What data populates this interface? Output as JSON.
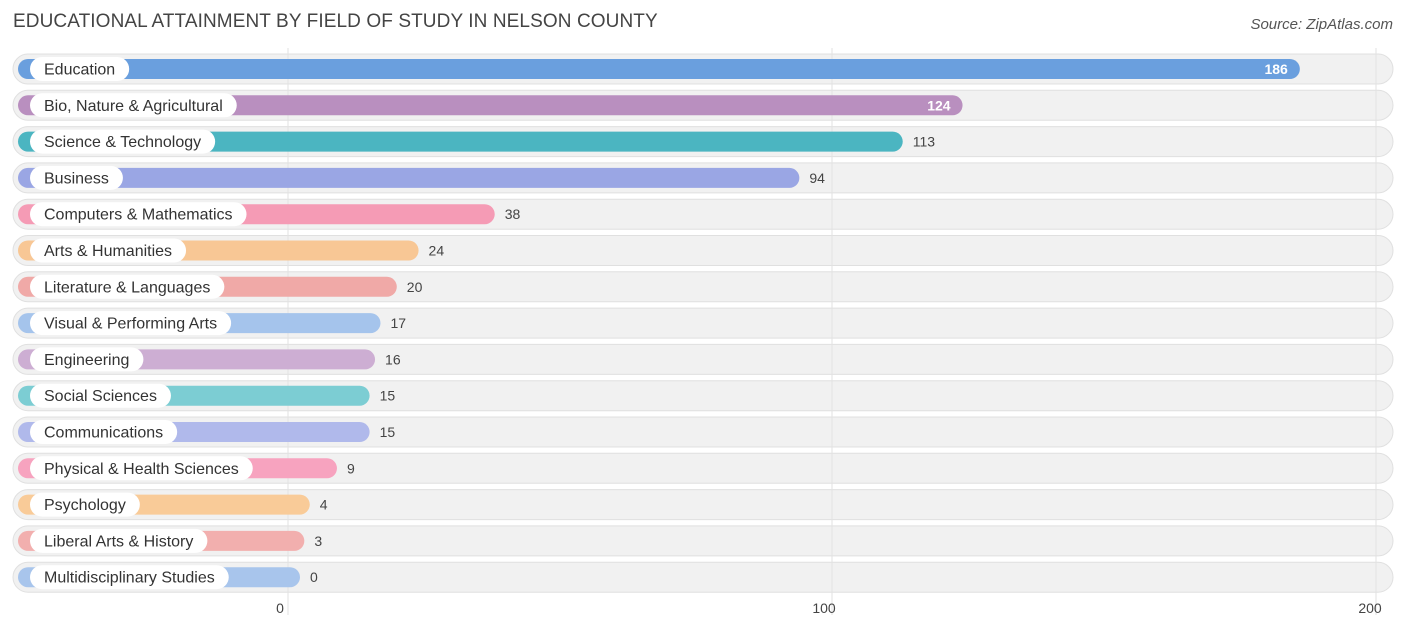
{
  "title": "EDUCATIONAL ATTAINMENT BY FIELD OF STUDY IN NELSON COUNTY",
  "source": "Source: ZipAtlas.com",
  "chart_data": {
    "type": "bar",
    "orientation": "horizontal",
    "title": "EDUCATIONAL ATTAINMENT BY FIELD OF STUDY IN NELSON COUNTY",
    "categories": [
      "Education",
      "Bio, Nature & Agricultural",
      "Science & Technology",
      "Business",
      "Computers & Mathematics",
      "Arts & Humanities",
      "Literature & Languages",
      "Visual & Performing Arts",
      "Engineering",
      "Social Sciences",
      "Communications",
      "Physical & Health Sciences",
      "Psychology",
      "Liberal Arts & History",
      "Multidisciplinary Studies"
    ],
    "values": [
      186,
      124,
      113,
      94,
      38,
      24,
      20,
      17,
      16,
      15,
      15,
      9,
      4,
      3,
      0
    ],
    "colors": [
      "#6a9fde",
      "#b98fbf",
      "#4bb5c1",
      "#9aa6e4",
      "#f59bb5",
      "#f8c795",
      "#f0a9a7",
      "#a5c4ec",
      "#cdaed3",
      "#7ccdd3",
      "#b0b9eb",
      "#f7a3bf",
      "#f9cb98",
      "#f2afae",
      "#a8c5ec"
    ],
    "xlim": [
      0,
      200
    ],
    "xticks": [
      0,
      100,
      200
    ],
    "xlabel": "",
    "ylabel": "",
    "grid": true
  }
}
